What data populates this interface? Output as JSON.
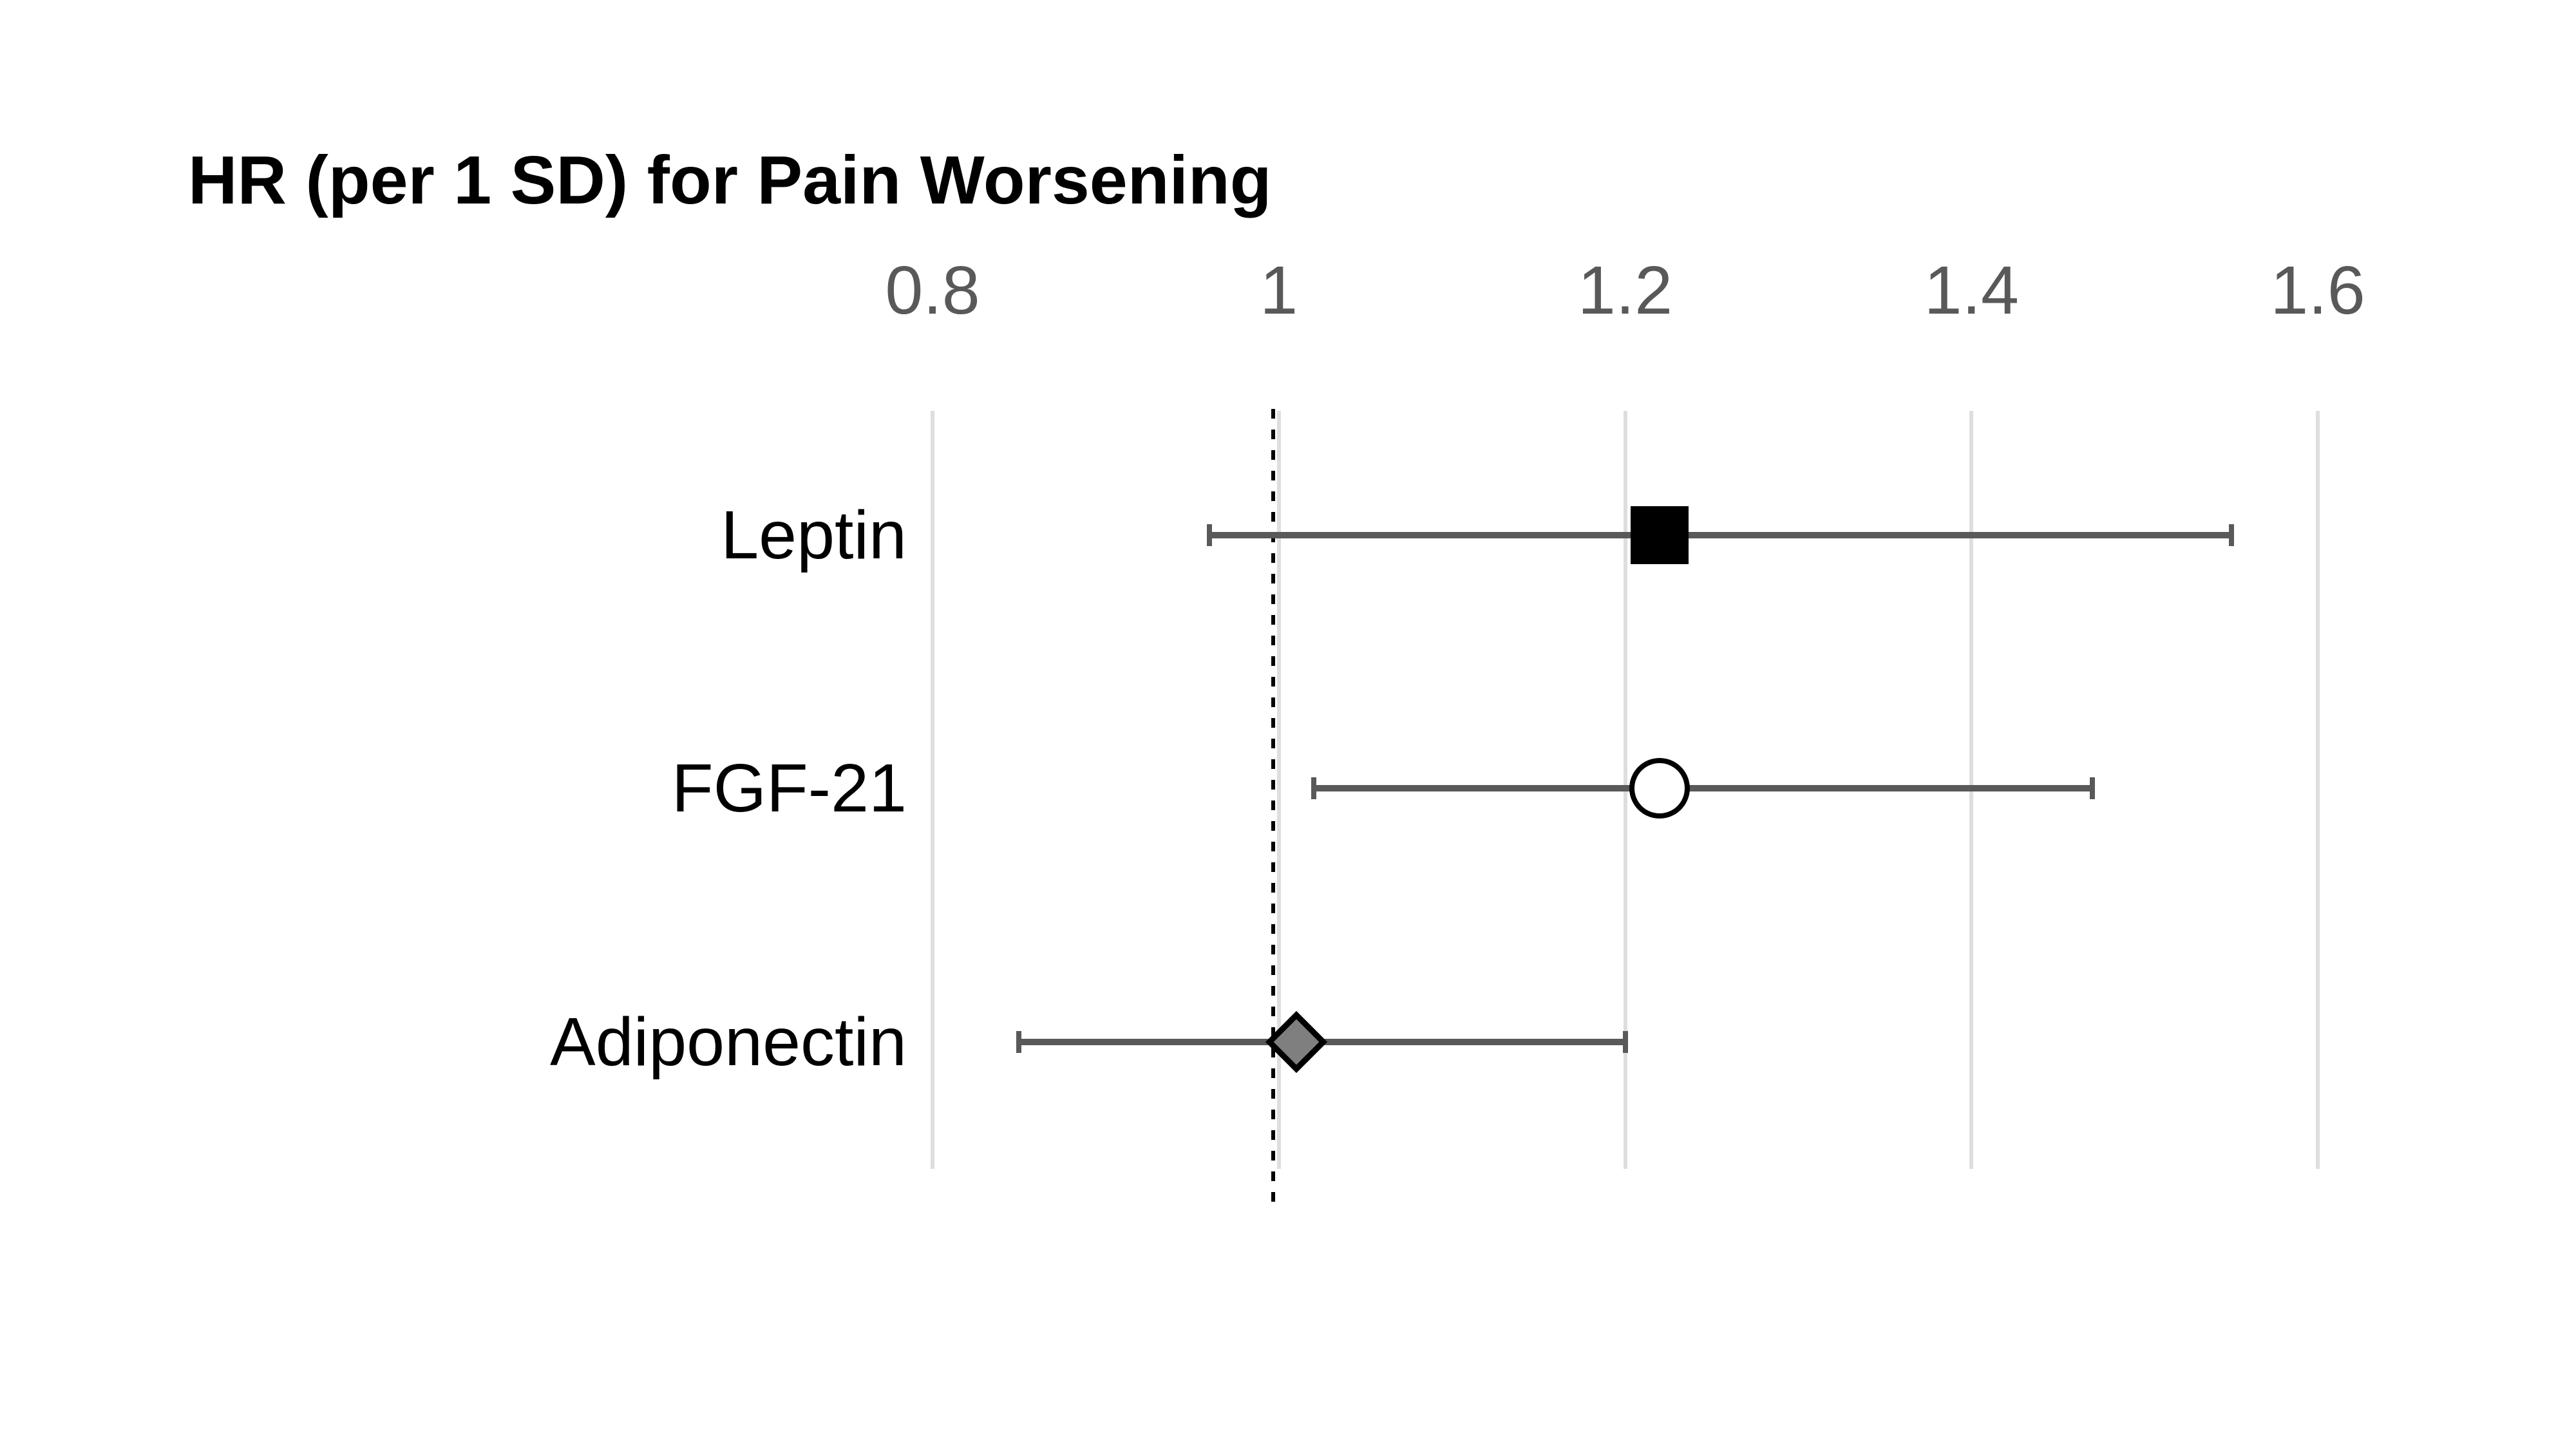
{
  "chart_data": {
    "type": "scatter",
    "subtype": "forest-plot",
    "orientation": "horizontal",
    "title": "HR (per 1 SD) for Pain Worsening",
    "xlabel": "",
    "ylabel": "",
    "x_ticks": [
      0.8,
      1,
      1.2,
      1.4,
      1.6
    ],
    "x_tick_labels": [
      "0.8",
      "1",
      "1.2",
      "1.4",
      "1.6"
    ],
    "xlim": [
      0.8,
      1.6
    ],
    "grid": true,
    "legend": "none",
    "reference_line": {
      "x": 1,
      "style": "dashed",
      "color": "#000000"
    },
    "series": [
      {
        "label": "Leptin",
        "hr": 1.22,
        "ci_low": 0.96,
        "ci_high": 1.55,
        "marker": "filled-square",
        "marker_fill": "#000000",
        "marker_outline": "#000000"
      },
      {
        "label": "FGF-21",
        "hr": 1.22,
        "ci_low": 1.02,
        "ci_high": 1.47,
        "marker": "open-circle",
        "marker_fill": "#ffffff",
        "marker_outline": "#000000"
      },
      {
        "label": "Adiponectin",
        "hr": 1.01,
        "ci_low": 0.85,
        "ci_high": 1.2,
        "marker": "filled-diamond",
        "marker_fill": "#7f7f7f",
        "marker_outline": "#000000"
      }
    ],
    "colors": {
      "error_bar": "#595959",
      "gridline": "#dedede",
      "tick_label": "#595959",
      "title": "#000000",
      "category_label": "#000000",
      "background": "#ffffff"
    }
  }
}
